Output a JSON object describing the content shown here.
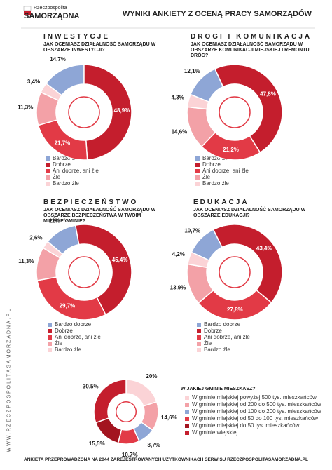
{
  "header": {
    "brand_top": "Rzeczpospolita",
    "brand": "SAMORZĄDNA",
    "title": "WYNIKI ANKIETY Z OCENĄ PRACY SAMORZĄDÓW"
  },
  "side_url": "WWW.RZECZPOSPOLITASAMORZADNA.PL",
  "footer": "ANKIETA PRZEPROWADZONA NA 2044 ZAREJESTROWANYCH UŻYTKOWNIKACH SERWISU RZECZPOSPOLITASAMORZADNA.PL",
  "chart_data": [
    {
      "type": "donut",
      "title": "INWESTYCJE",
      "question": "JAK OCENIASZ DZIAŁALNOŚĆ SAMORZĄDU W OBSZARZE INWESTYCJI?",
      "categories": [
        "Bardzo dobrze",
        "Dobrze",
        "Ani dobrze, ani źle",
        "Źle",
        "Bardzo źle"
      ],
      "values": [
        14.7,
        48.9,
        21.7,
        11.3,
        3.4
      ],
      "value_labels": [
        "14,7%",
        "48,9%",
        "21,7%",
        "11,3%",
        "3,4%"
      ],
      "colors": [
        "#8ea6d6",
        "#c41e2d",
        "#e23a46",
        "#f3a1a7",
        "#fbd3d6"
      ]
    },
    {
      "type": "donut",
      "title": "DROGI I KOMUNIKACJA",
      "question": "JAK OCENIASZ DZIAŁALNOŚĆ SAMORZĄDU W OBSZARZE KOMUNIKACJI MIEJSKIEJ I REMONTU DRÓG?",
      "categories": [
        "Bardzo dobrze",
        "Dobrze",
        "Ani dobrze, ani źle",
        "Źle",
        "Bardzo źle"
      ],
      "values": [
        12.1,
        47.8,
        21.2,
        14.6,
        4.3
      ],
      "value_labels": [
        "12,1%",
        "47,8%",
        "21,2%",
        "14,6%",
        "4,3%"
      ],
      "colors": [
        "#8ea6d6",
        "#c41e2d",
        "#e23a46",
        "#f3a1a7",
        "#fbd3d6"
      ]
    },
    {
      "type": "donut",
      "title": "BEZPIECZEŃSTWO",
      "question": "JAK OCENIASZ DZIAŁALNOŚĆ SAMORZĄDU W OBSZARZE BEZPIECZEŃSTWA W TWOIM MIEŚCIE/GMINIE?",
      "categories": [
        "Bardzo dobrze",
        "Dobrze",
        "Ani dobrze, ani źle",
        "Źle",
        "Bardzo źle"
      ],
      "values": [
        11,
        45.4,
        29.7,
        11.3,
        2.6
      ],
      "value_labels": [
        "11%",
        "45,4%",
        "29,7%",
        "11,3%",
        "2,6%"
      ],
      "colors": [
        "#8ea6d6",
        "#c41e2d",
        "#e23a46",
        "#f3a1a7",
        "#fbd3d6"
      ]
    },
    {
      "type": "donut",
      "title": "EDUKACJA",
      "question": "JAK OCENIASZ DZIAŁALNOŚĆ SAMORZĄDU W OBSZARZE EDUKACJI?",
      "categories": [
        "Bardzo dobrze",
        "Dobrze",
        "Ani dobrze, ani źle",
        "Źle",
        "Bardzo źle"
      ],
      "values": [
        10.7,
        43.4,
        27.8,
        13.9,
        4.2
      ],
      "value_labels": [
        "10,7%",
        "43,4%",
        "27,8%",
        "13,9%",
        "4,2%"
      ],
      "colors": [
        "#8ea6d6",
        "#c41e2d",
        "#e23a46",
        "#f3a1a7",
        "#fbd3d6"
      ]
    },
    {
      "type": "donut",
      "title": "W JAKIEJ GMINIE MIESZKASZ?",
      "categories": [
        "W gminie miejskiej powyżej 500 tys. mieszkańców",
        "W gminie miejskiej od 200 do 500 tys. mieszkańców",
        "W gminie miejskiej od 100 do 200 tys. mieszkańców",
        "W gminie miejskiej od 50 do 100 tys. mieszkańców",
        "W gminie miejskiej do 50 tys. mieszkańców",
        "W gminie wiejskiej"
      ],
      "values": [
        20,
        14.6,
        8.7,
        10.7,
        15.5,
        30.5
      ],
      "value_labels": [
        "20%",
        "14,6%",
        "8,7%",
        "10,7%",
        "15,5%",
        "30,5%"
      ],
      "colors": [
        "#fbd3d6",
        "#f3a1a7",
        "#8ea6d6",
        "#e23a46",
        "#a3141f",
        "#c41e2d"
      ]
    }
  ]
}
